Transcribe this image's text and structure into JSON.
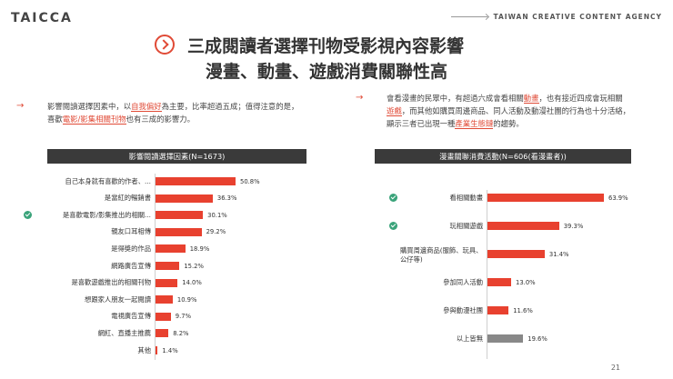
{
  "header": {
    "logo": "TAICCA",
    "agency": "TAIWAN CREATIVE CONTENT AGENCY"
  },
  "title": {
    "line1": "三成閱讀者選擇刊物受影視內容影響",
    "line2": "漫畫、動畫、遊戲消費關聯性高"
  },
  "note_left": {
    "t1": "影響閱讀選擇因素中，以",
    "h1": "自我偏好",
    "t2": "為主要，比率超過五成；值得注意的是，",
    "t3": "喜歡",
    "h2": "電影/影集相關刊物",
    "t4": "也有三成的影響力。"
  },
  "note_right": {
    "t1": "會看漫畫的民眾中，有超過六成會看相關",
    "h1": "動畫",
    "t2": "，也有接近四成會玩相關",
    "h2": "遊戲",
    "t3": "，而其他如購買周邊商品、同人活動及動漫社團的行為也十分活絡，",
    "t4": "顯示三者已出現一種",
    "h3": "產業生態鏈",
    "t5": "的趨勢。"
  },
  "chart_data": [
    {
      "type": "bar",
      "title": "影響閱讀選擇因素(N=1673)",
      "categories": [
        "自己本身就有喜歡的作者、...",
        "是當紅的暢銷書",
        "是喜歡電影/影集推出的相關...",
        "親友口耳相傳",
        "是得獎的作品",
        "網路廣告宣傳",
        "是喜歡遊戲推出的相關刊物",
        "想跟家人朋友一起閱讀",
        "電視廣告宣傳",
        "網紅、直播主推薦",
        "其他"
      ],
      "values": [
        50.8,
        36.3,
        30.1,
        29.2,
        18.9,
        15.2,
        14.0,
        10.9,
        9.7,
        8.2,
        1.4
      ],
      "value_labels": [
        "50.8%",
        "36.3%",
        "30.1%",
        "29.2%",
        "18.9%",
        "15.2%",
        "14.0%",
        "10.9%",
        "9.7%",
        "8.2%",
        "1.4%"
      ],
      "checked": [
        2
      ],
      "color": "#e8412f"
    },
    {
      "type": "bar",
      "title": "漫畫關聯消費活動(N=606(看漫畫者))",
      "categories": [
        "看相關動畫",
        "玩相關遊戲",
        "購買周邊商品(服飾、玩具、公仔等)",
        "參加同人活動",
        "參與動漫社團",
        "以上皆無"
      ],
      "values": [
        63.9,
        39.3,
        31.4,
        13.0,
        11.6,
        19.6
      ],
      "value_labels": [
        "63.9%",
        "39.3%",
        "31.4%",
        "13.0%",
        "11.6%",
        "19.6%"
      ],
      "checked": [
        0,
        1
      ],
      "grey": [
        5
      ],
      "color": "#e8412f",
      "grey_color": "#888888"
    }
  ],
  "page_number": "21"
}
